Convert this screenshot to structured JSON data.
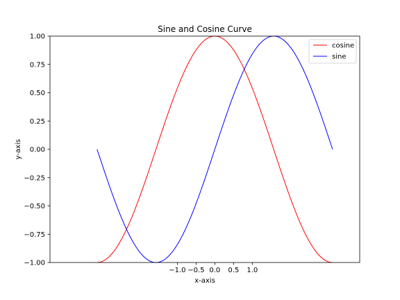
{
  "chart_data": {
    "type": "line",
    "title": "Sine and Cosine Curve",
    "xlabel": "x-axis",
    "ylabel": "y-axis",
    "xlim": [
      -4.398,
      3.867
    ],
    "ylim": [
      -1.0,
      1.0
    ],
    "xticks": [
      -1.0,
      -0.5,
      0.0,
      0.5,
      1.0
    ],
    "xtick_labels": [
      "−1.0",
      "−0.5",
      "0.0",
      "0.5",
      "1.0"
    ],
    "yticks": [
      -1.0,
      -0.75,
      -0.5,
      -0.25,
      0.0,
      0.25,
      0.5,
      0.75,
      1.0
    ],
    "ytick_labels": [
      "−1.00",
      "−0.75",
      "−0.50",
      "−0.25",
      "0.00",
      "0.25",
      "0.50",
      "0.75",
      "1.00"
    ],
    "grid": false,
    "legend_position": "top-right",
    "series": [
      {
        "name": "cosine",
        "color": "#ff0000",
        "function": "cos",
        "x_range": [
          -3.1416,
          3.1416
        ],
        "samples": 256
      },
      {
        "name": "sine",
        "color": "#0000ff",
        "function": "sin",
        "x_range": [
          -3.1416,
          3.1416
        ],
        "samples": 256
      }
    ]
  }
}
